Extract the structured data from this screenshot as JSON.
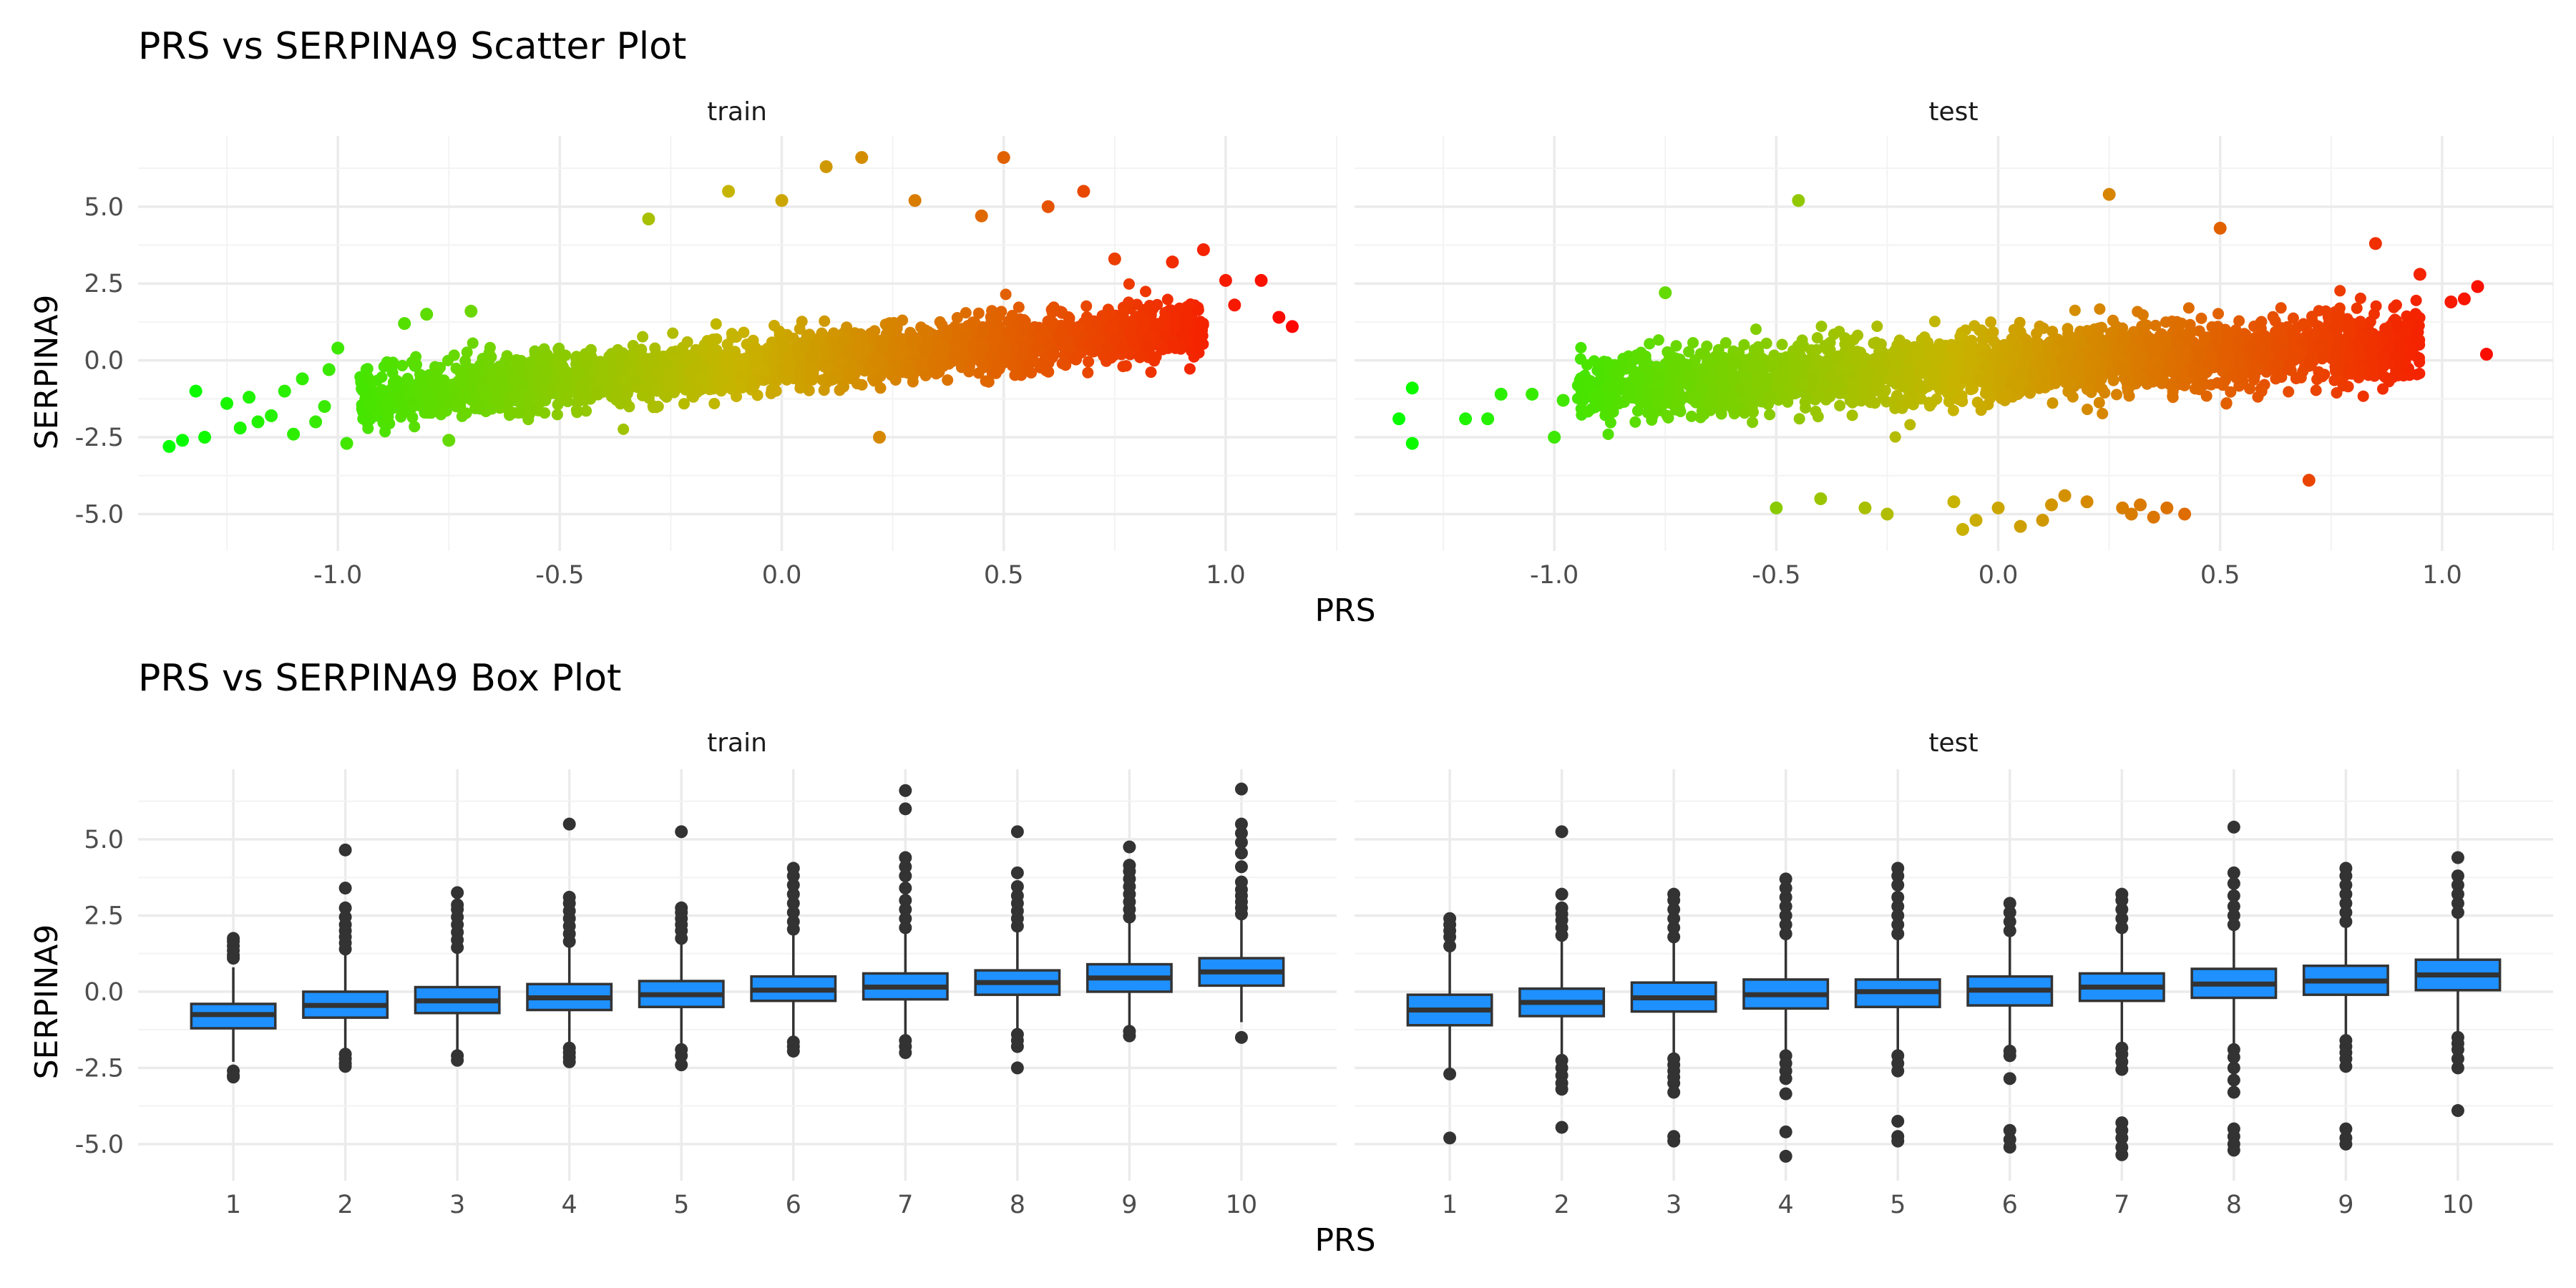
{
  "figure": {
    "scatter_title": "PRS vs SERPINA9 Scatter Plot",
    "box_title": "PRS vs SERPINA9 Box Plot"
  },
  "chart_data": [
    {
      "type": "scatter",
      "title": "PRS vs SERPINA9 Scatter Plot",
      "xlabel": "PRS",
      "ylabel": "SERPINA9",
      "xlim": [
        -1.45,
        1.25
      ],
      "ylim": [
        -6.2,
        7.3
      ],
      "xticks": [
        -1.0,
        -0.5,
        0.0,
        0.5,
        1.0
      ],
      "xtick_labels": [
        "-1.0",
        "-0.5",
        "0.0",
        "0.5",
        "1.0"
      ],
      "yticks": [
        -5.0,
        -2.5,
        0.0,
        2.5,
        5.0
      ],
      "ytick_labels": [
        "-5.0",
        "-2.5",
        "0.0",
        "2.5",
        "5.0"
      ],
      "grid": true,
      "color_gradient": {
        "low": "#00ff00",
        "mid": "#c8b400",
        "high": "#ff0000",
        "domain": [
          -1.4,
          1.2
        ]
      },
      "facets": [
        {
          "label": "train",
          "density_trend": {
            "x_range": [
              -0.95,
              0.95
            ],
            "slope": 1.2,
            "intercept": -0.05,
            "spread": 0.45
          },
          "points": [
            [
              -1.38,
              -2.8
            ],
            [
              -1.35,
              -2.6
            ],
            [
              -1.32,
              -1.0
            ],
            [
              -1.3,
              -2.5
            ],
            [
              -1.25,
              -1.4
            ],
            [
              -1.22,
              -2.2
            ],
            [
              -1.2,
              -1.2
            ],
            [
              -1.18,
              -2.0
            ],
            [
              -1.15,
              -1.8
            ],
            [
              -1.12,
              -1.0
            ],
            [
              -1.1,
              -2.4
            ],
            [
              -1.08,
              -0.6
            ],
            [
              -1.05,
              -2.0
            ],
            [
              -1.03,
              -1.5
            ],
            [
              -1.02,
              -0.3
            ],
            [
              -1.0,
              0.4
            ],
            [
              -0.98,
              -2.7
            ],
            [
              -0.85,
              1.2
            ],
            [
              -0.8,
              1.5
            ],
            [
              -0.75,
              -2.6
            ],
            [
              -0.7,
              1.6
            ],
            [
              -0.3,
              4.6
            ],
            [
              -0.12,
              5.5
            ],
            [
              0.0,
              5.2
            ],
            [
              0.1,
              6.3
            ],
            [
              0.18,
              6.6
            ],
            [
              0.22,
              -2.5
            ],
            [
              0.3,
              5.2
            ],
            [
              0.45,
              4.7
            ],
            [
              0.5,
              6.6
            ],
            [
              0.6,
              5.0
            ],
            [
              0.68,
              5.5
            ],
            [
              0.75,
              3.3
            ],
            [
              0.88,
              3.2
            ],
            [
              0.95,
              3.6
            ],
            [
              1.0,
              2.6
            ],
            [
              1.02,
              1.8
            ],
            [
              1.08,
              2.6
            ],
            [
              1.12,
              1.4
            ],
            [
              1.15,
              1.1
            ]
          ]
        },
        {
          "label": "test",
          "density_trend": {
            "x_range": [
              -0.95,
              0.95
            ],
            "slope": 0.75,
            "intercept": -0.2,
            "spread": 0.55
          },
          "points": [
            [
              -1.32,
              -0.9
            ],
            [
              -1.32,
              -2.7
            ],
            [
              -1.35,
              -1.9
            ],
            [
              -1.2,
              -1.9
            ],
            [
              -1.15,
              -1.9
            ],
            [
              -1.12,
              -1.1
            ],
            [
              -1.05,
              -1.1
            ],
            [
              -1.0,
              -2.5
            ],
            [
              -0.98,
              -1.3
            ],
            [
              -0.9,
              -1.2
            ],
            [
              -0.75,
              2.2
            ],
            [
              -0.5,
              -4.8
            ],
            [
              -0.45,
              5.2
            ],
            [
              -0.4,
              -4.5
            ],
            [
              -0.3,
              -4.8
            ],
            [
              -0.25,
              -5.0
            ],
            [
              -0.1,
              -4.6
            ],
            [
              -0.08,
              -5.5
            ],
            [
              -0.05,
              -5.2
            ],
            [
              0.0,
              -4.8
            ],
            [
              0.05,
              -5.4
            ],
            [
              0.1,
              -5.2
            ],
            [
              0.12,
              -4.7
            ],
            [
              0.15,
              -4.4
            ],
            [
              0.2,
              -4.6
            ],
            [
              0.25,
              5.4
            ],
            [
              0.28,
              -4.8
            ],
            [
              0.3,
              -5.0
            ],
            [
              0.32,
              -4.7
            ],
            [
              0.35,
              -5.1
            ],
            [
              0.38,
              -4.8
            ],
            [
              0.42,
              -5.0
            ],
            [
              0.5,
              4.3
            ],
            [
              0.7,
              -3.9
            ],
            [
              0.85,
              3.8
            ],
            [
              0.95,
              2.8
            ],
            [
              1.02,
              1.9
            ],
            [
              1.05,
              2.0
            ],
            [
              1.08,
              2.4
            ],
            [
              1.1,
              0.2
            ]
          ]
        }
      ]
    },
    {
      "type": "box",
      "title": "PRS vs SERPINA9 Box Plot",
      "xlabel": "PRS",
      "ylabel": "SERPINA9",
      "categories": [
        "1",
        "2",
        "3",
        "4",
        "5",
        "6",
        "7",
        "8",
        "9",
        "10"
      ],
      "ylim": [
        -6.2,
        7.3
      ],
      "yticks": [
        -5.0,
        -2.5,
        0.0,
        2.5,
        5.0
      ],
      "ytick_labels": [
        "-5.0",
        "-2.5",
        "0.0",
        "2.5",
        "5.0"
      ],
      "grid": true,
      "fill": "#1e90ff",
      "facets": [
        {
          "label": "train",
          "boxes": [
            {
              "q1": -1.2,
              "med": -0.75,
              "q3": -0.4,
              "lo": -2.3,
              "hi": 0.8,
              "out": [
                -2.6,
                -2.75,
                -2.8,
                1.1,
                1.2,
                1.35,
                1.5,
                1.65,
                1.75
              ]
            },
            {
              "q1": -0.85,
              "med": -0.45,
              "q3": 0.0,
              "lo": -2.0,
              "hi": 1.2,
              "out": [
                -2.05,
                -2.2,
                -2.35,
                -2.45,
                1.4,
                1.6,
                1.8,
                2.0,
                2.2,
                2.45,
                2.75,
                3.4,
                4.65
              ]
            },
            {
              "q1": -0.7,
              "med": -0.3,
              "q3": 0.15,
              "lo": -2.0,
              "hi": 1.3,
              "out": [
                -2.1,
                -2.25,
                1.45,
                1.7,
                1.95,
                2.2,
                2.45,
                2.7,
                2.85,
                3.25
              ]
            },
            {
              "q1": -0.6,
              "med": -0.2,
              "q3": 0.25,
              "lo": -1.8,
              "hi": 1.5,
              "out": [
                -1.85,
                -2.0,
                -2.15,
                -2.3,
                1.65,
                1.9,
                2.15,
                2.4,
                2.65,
                2.9,
                3.1,
                5.5
              ]
            },
            {
              "q1": -0.5,
              "med": -0.1,
              "q3": 0.35,
              "lo": -1.8,
              "hi": 1.6,
              "out": [
                -1.9,
                -2.1,
                -2.4,
                1.75,
                2.0,
                2.2,
                2.4,
                2.6,
                2.75,
                5.25
              ]
            },
            {
              "q1": -0.3,
              "med": 0.05,
              "q3": 0.5,
              "lo": -1.5,
              "hi": 1.9,
              "out": [
                -1.65,
                -1.8,
                -1.95,
                2.05,
                2.3,
                2.6,
                2.9,
                3.2,
                3.5,
                3.8,
                4.05
              ]
            },
            {
              "q1": -0.25,
              "med": 0.15,
              "q3": 0.6,
              "lo": -1.5,
              "hi": 1.9,
              "out": [
                -1.6,
                -1.8,
                -2.0,
                2.1,
                2.4,
                2.7,
                3.0,
                3.4,
                3.8,
                4.1,
                4.4,
                6.0,
                6.6
              ]
            },
            {
              "q1": -0.1,
              "med": 0.3,
              "q3": 0.7,
              "lo": -1.3,
              "hi": 2.0,
              "out": [
                -1.4,
                -1.6,
                -1.8,
                -2.5,
                2.15,
                2.4,
                2.65,
                2.9,
                3.15,
                3.45,
                3.9,
                5.25
              ]
            },
            {
              "q1": 0.0,
              "med": 0.45,
              "q3": 0.9,
              "lo": -1.2,
              "hi": 2.3,
              "out": [
                -1.3,
                -1.45,
                2.45,
                2.7,
                2.95,
                3.2,
                3.45,
                3.7,
                3.95,
                4.15,
                4.75
              ]
            },
            {
              "q1": 0.2,
              "med": 0.65,
              "q3": 1.1,
              "lo": -1.0,
              "hi": 2.4,
              "out": [
                -1.5,
                2.55,
                2.75,
                2.95,
                3.15,
                3.35,
                3.6,
                4.1,
                4.55,
                4.9,
                5.2,
                5.5,
                6.65
              ]
            }
          ]
        },
        {
          "label": "test",
          "boxes": [
            {
              "q1": -1.1,
              "med": -0.6,
              "q3": -0.1,
              "lo": -2.5,
              "hi": 1.3,
              "out": [
                -2.7,
                -4.8,
                1.5,
                1.8,
                2.0,
                2.2,
                2.4
              ]
            },
            {
              "q1": -0.8,
              "med": -0.35,
              "q3": 0.1,
              "lo": -2.1,
              "hi": 1.7,
              "out": [
                -2.25,
                -2.5,
                -2.75,
                -3.0,
                -3.2,
                -4.45,
                1.85,
                2.1,
                2.35,
                2.55,
                2.75,
                3.2,
                5.25
              ]
            },
            {
              "q1": -0.65,
              "med": -0.2,
              "q3": 0.3,
              "lo": -2.0,
              "hi": 1.6,
              "out": [
                -2.2,
                -2.4,
                -2.6,
                -2.8,
                -3.0,
                -3.3,
                -4.75,
                -4.9,
                1.8,
                2.1,
                2.4,
                2.7,
                3.0,
                3.2
              ]
            },
            {
              "q1": -0.55,
              "med": -0.1,
              "q3": 0.4,
              "lo": -2.0,
              "hi": 1.7,
              "out": [
                -2.1,
                -2.35,
                -2.6,
                -2.85,
                -3.35,
                -4.6,
                -5.4,
                1.9,
                2.2,
                2.5,
                2.8,
                3.1,
                3.4,
                3.7
              ]
            },
            {
              "q1": -0.5,
              "med": 0.0,
              "q3": 0.4,
              "lo": -1.9,
              "hi": 1.7,
              "out": [
                -2.1,
                -2.35,
                -2.6,
                -4.25,
                -4.75,
                -4.9,
                1.9,
                2.2,
                2.5,
                2.8,
                3.1,
                3.5,
                3.8,
                4.05
              ]
            },
            {
              "q1": -0.45,
              "med": 0.05,
              "q3": 0.5,
              "lo": -1.8,
              "hi": 1.8,
              "out": [
                -1.95,
                -2.1,
                -2.85,
                -4.55,
                -4.85,
                -5.1,
                2.0,
                2.3,
                2.6,
                2.9
              ]
            },
            {
              "q1": -0.3,
              "med": 0.15,
              "q3": 0.6,
              "lo": -1.7,
              "hi": 1.9,
              "out": [
                -1.85,
                -2.05,
                -2.3,
                -2.55,
                -4.3,
                -4.55,
                -4.8,
                -5.1,
                -5.35,
                2.1,
                2.4,
                2.7,
                3.0,
                3.2
              ]
            },
            {
              "q1": -0.2,
              "med": 0.25,
              "q3": 0.75,
              "lo": -1.7,
              "hi": 2.0,
              "out": [
                -1.9,
                -2.15,
                -2.5,
                -2.9,
                -3.3,
                -4.5,
                -4.75,
                -5.0,
                -5.2,
                2.2,
                2.5,
                2.8,
                3.15,
                3.55,
                3.9,
                5.4
              ]
            },
            {
              "q1": -0.1,
              "med": 0.35,
              "q3": 0.85,
              "lo": -1.5,
              "hi": 2.1,
              "out": [
                -1.6,
                -1.8,
                -2.0,
                -2.2,
                -2.45,
                -4.5,
                -4.8,
                -5.0,
                2.3,
                2.6,
                2.9,
                3.2,
                3.5,
                3.8,
                4.05
              ]
            },
            {
              "q1": 0.05,
              "med": 0.55,
              "q3": 1.05,
              "lo": -1.3,
              "hi": 2.4,
              "out": [
                -1.5,
                -1.7,
                -1.9,
                -2.2,
                -2.5,
                -3.9,
                2.6,
                2.9,
                3.2,
                3.5,
                3.8,
                4.4
              ]
            }
          ]
        }
      ]
    }
  ]
}
